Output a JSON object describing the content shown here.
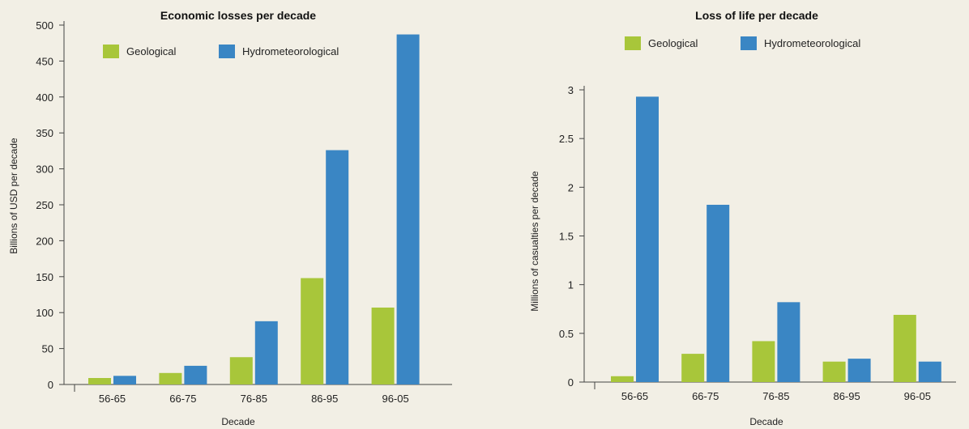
{
  "chart_data": [
    {
      "type": "bar",
      "title": "Economic losses per decade",
      "xlabel": "Decade",
      "ylabel": "Billions of USD per decade",
      "categories": [
        "56-65",
        "66-75",
        "76-85",
        "86-95",
        "96-05"
      ],
      "ylim": [
        0,
        500
      ],
      "yticks": [
        0,
        50,
        100,
        150,
        200,
        250,
        300,
        350,
        400,
        450,
        500
      ],
      "legend_position": "top-left",
      "series": [
        {
          "name": "Geological",
          "color": "#a8c63a",
          "values": [
            9,
            16,
            38,
            148,
            107
          ]
        },
        {
          "name": "Hydrometeorological",
          "color": "#3a86c4",
          "values": [
            12,
            26,
            88,
            326,
            487
          ]
        }
      ]
    },
    {
      "type": "bar",
      "title": "Loss of life per decade",
      "xlabel": "Decade",
      "ylabel": "Millions of casualties per decade",
      "categories": [
        "56-65",
        "66-75",
        "76-85",
        "86-95",
        "96-05"
      ],
      "ylim": [
        0,
        3
      ],
      "yticks": [
        "0",
        "0.5",
        "1",
        "1.5",
        "2",
        "2.5",
        "3"
      ],
      "legend_position": "top",
      "series": [
        {
          "name": "Geological",
          "color": "#a8c63a",
          "values": [
            0.06,
            0.29,
            0.42,
            0.21,
            0.69
          ]
        },
        {
          "name": "Hydrometeorological",
          "color": "#3a86c4",
          "values": [
            2.93,
            1.82,
            0.82,
            0.24,
            0.21
          ]
        }
      ]
    }
  ]
}
